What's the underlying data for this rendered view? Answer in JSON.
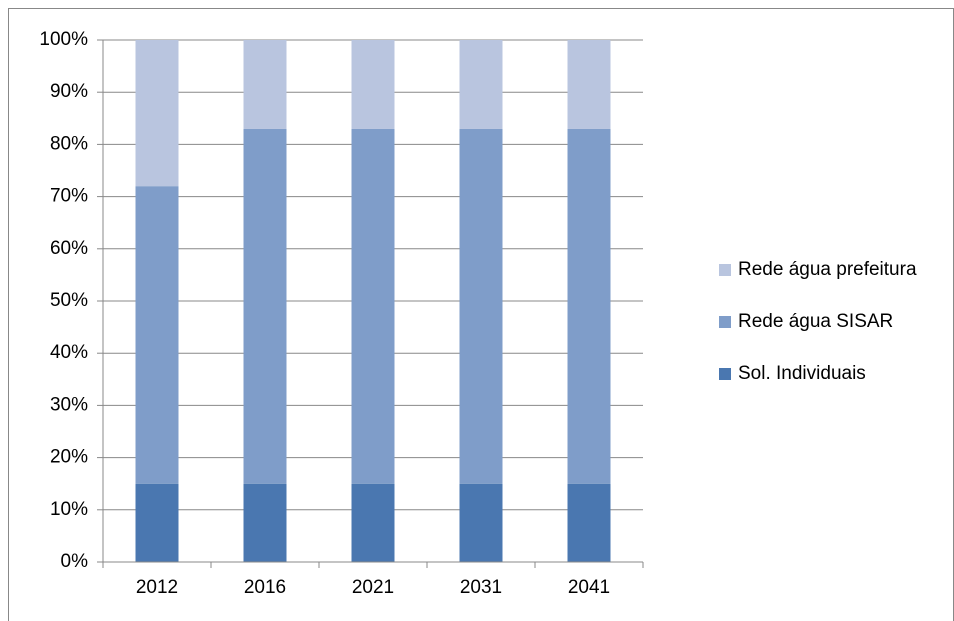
{
  "chart_data": {
    "type": "stacked_bar",
    "categories": [
      "2012",
      "2016",
      "2021",
      "2031",
      "2041"
    ],
    "series": [
      {
        "name": "Sol. Individuais",
        "color": "#4a77b0",
        "values": [
          15,
          15,
          15,
          15,
          15
        ]
      },
      {
        "name": "Rede água SISAR",
        "color": "#7f9dc9",
        "values": [
          57,
          68,
          68,
          68,
          68
        ]
      },
      {
        "name": "Rede água prefeitura",
        "color": "#b9c5df",
        "values": [
          28,
          17,
          17,
          17,
          17
        ]
      }
    ],
    "ylim": [
      0,
      100
    ],
    "yticks": [
      {
        "value": 0,
        "label": "0%"
      },
      {
        "value": 10,
        "label": "10%"
      },
      {
        "value": 20,
        "label": "20%"
      },
      {
        "value": 30,
        "label": "30%"
      },
      {
        "value": 40,
        "label": "40%"
      },
      {
        "value": 50,
        "label": "50%"
      },
      {
        "value": 60,
        "label": "60%"
      },
      {
        "value": 70,
        "label": "70%"
      },
      {
        "value": 80,
        "label": "80%"
      },
      {
        "value": 90,
        "label": "90%"
      },
      {
        "value": 100,
        "label": "100%"
      }
    ],
    "grid": true,
    "legend": "right"
  }
}
